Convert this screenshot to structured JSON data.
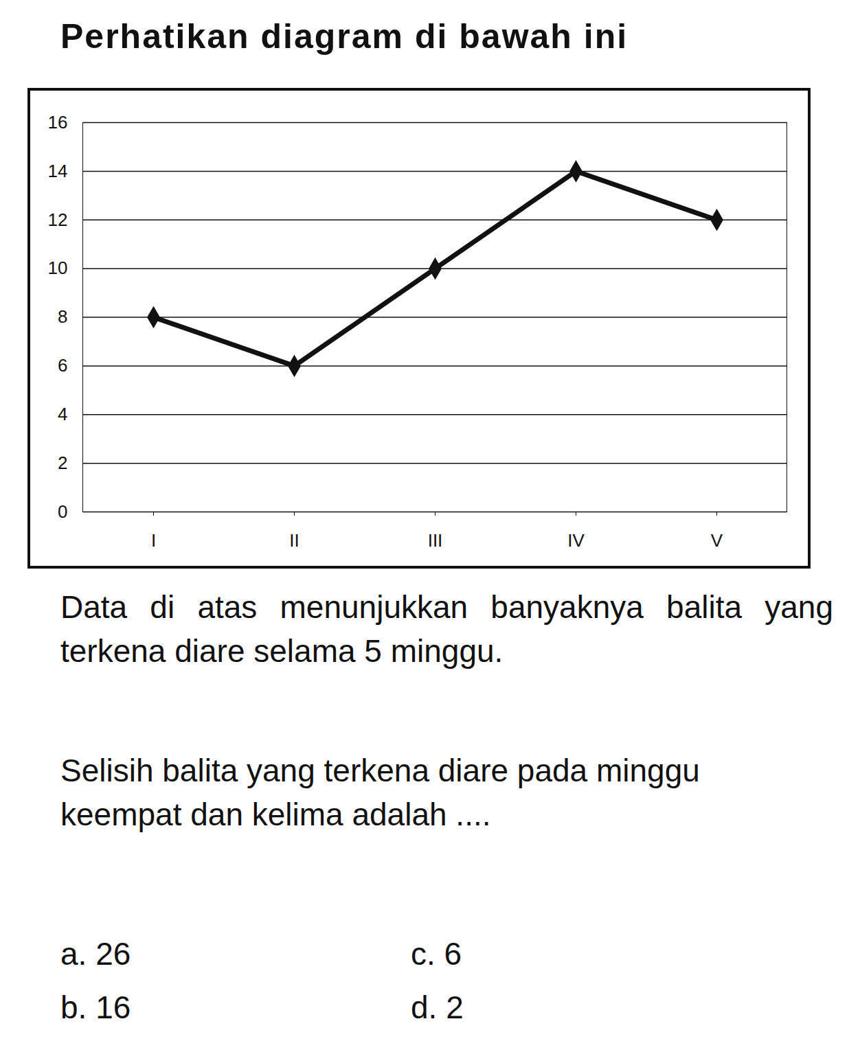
{
  "heading": "Perhatikan diagram di bawah ini",
  "chart_data": {
    "type": "line",
    "categories": [
      "I",
      "II",
      "III",
      "IV",
      "V"
    ],
    "values": [
      8,
      6,
      10,
      14,
      12
    ],
    "color": "#111111",
    "marker": "diamond",
    "line_style": "solid",
    "ylim": [
      0,
      16
    ],
    "yticks": [
      0,
      2,
      4,
      6,
      8,
      10,
      12,
      14,
      16
    ],
    "grid": true
  },
  "description": "Data di atas menunjukkan banyaknya balita yang terkena diare selama 5 minggu.",
  "question": "Selisih balita yang terkena diare pada minggu keempat dan kelima adalah ....",
  "options": [
    {
      "label": "a.",
      "text": "26"
    },
    {
      "label": "b.",
      "text": "16"
    },
    {
      "label": "c.",
      "text": "6"
    },
    {
      "label": "d.",
      "text": "2"
    }
  ]
}
